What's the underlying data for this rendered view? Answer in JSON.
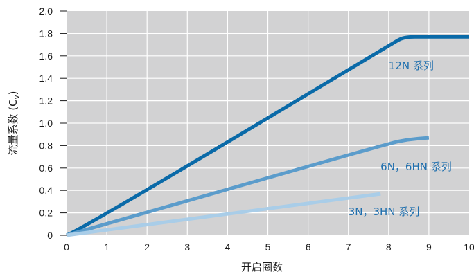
{
  "chart_data": {
    "type": "line",
    "title": "",
    "xlabel": "开启圈数",
    "ylabel_main": "流量系数 (C",
    "ylabel_sub": "v",
    "ylabel_close": ")",
    "xlim": [
      0,
      10
    ],
    "ylim": [
      0,
      2.0
    ],
    "xticks": [
      "0",
      "1",
      "2",
      "3",
      "4",
      "5",
      "6",
      "7",
      "8",
      "9",
      "10"
    ],
    "yticks": [
      "0",
      "0.2",
      "0.4",
      "0.6",
      "0.8",
      "1.0",
      "1.2",
      "1.4",
      "1.6",
      "1.8",
      "2.0"
    ],
    "grid": true,
    "series": [
      {
        "name": "12N 系列",
        "color": "#0a6aa8",
        "x": [
          0,
          0.3,
          8.1,
          8.3,
          8.5,
          8.8,
          10
        ],
        "y": [
          0,
          0.04,
          1.71,
          1.755,
          1.77,
          1.77,
          1.77
        ]
      },
      {
        "name": "6N，6HN 系列",
        "color": "#5b9ccb",
        "x": [
          0,
          0.3,
          8.0,
          8.5,
          9.0
        ],
        "y": [
          0,
          0.03,
          0.82,
          0.855,
          0.87
        ]
      },
      {
        "name": "3N，3HN 系列",
        "color": "#a9cde8",
        "x": [
          0,
          0.3,
          7.8
        ],
        "y": [
          0,
          0.015,
          0.37
        ]
      }
    ],
    "annotations": [
      {
        "text": "12N 系列",
        "color": "#1f6fae",
        "x": 8.0,
        "y": 1.48
      },
      {
        "text": "6N，6HN 系列",
        "color": "#1f6fae",
        "x": 7.8,
        "y": 0.58
      },
      {
        "text": "3N，3HN 系列",
        "color": "#1f6fae",
        "x": 7.0,
        "y": 0.18
      }
    ]
  }
}
